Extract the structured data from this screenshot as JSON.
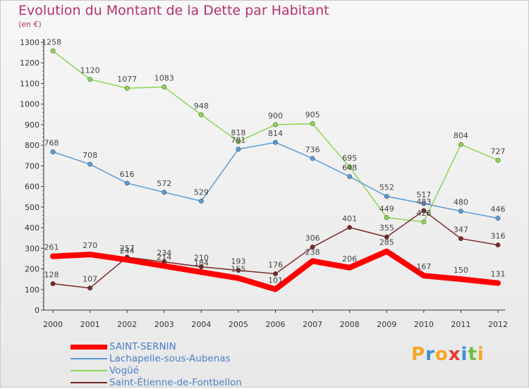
{
  "title": "Evolution du Montant de la Dette par Habitant",
  "subtitle": "(en €)",
  "logo": {
    "text": "Proxiti",
    "letters": [
      "P",
      "r",
      "o",
      "x",
      "i",
      "t",
      "i"
    ],
    "colors": [
      "#f5a623",
      "#3b8fd6",
      "#f5a623",
      "#e53935",
      "#3b8fd6",
      "#6abf40",
      "#f5a623"
    ]
  },
  "chart_data": {
    "type": "line",
    "title": "Evolution du Montant de la Dette par Habitant",
    "subtitle": "(en €)",
    "xlabel": "",
    "ylabel": "",
    "x": [
      "2000",
      "2001",
      "2002",
      "2003",
      "2004",
      "2005",
      "2006",
      "2007",
      "2008",
      "2009",
      "2010",
      "2011",
      "2012"
    ],
    "ylim": [
      0,
      1300
    ],
    "yticks": [
      0,
      100,
      200,
      300,
      400,
      500,
      600,
      700,
      800,
      900,
      1000,
      1100,
      1200,
      1300
    ],
    "grid": false,
    "legend": "bottom-left",
    "series": [
      {
        "name": "SAINT-SERNIN",
        "color": "#ff0000",
        "width": 8,
        "values": [
          261,
          270,
          244,
          214,
          184,
          155,
          101,
          238,
          206,
          285,
          167,
          150,
          131
        ],
        "labels": [
          "261",
          "270",
          "244",
          "214",
          "184",
          "155",
          "101",
          "238",
          "206",
          "285",
          "167",
          "150",
          "131"
        ]
      },
      {
        "name": "Lachapelle-sous-Aubenas",
        "color": "#5b9bd5",
        "width": 1.5,
        "values": [
          768,
          708,
          616,
          572,
          529,
          781,
          814,
          736,
          648,
          552,
          517,
          480,
          446
        ],
        "labels": [
          "768",
          "708",
          "616",
          "572",
          "529",
          "781",
          "814",
          "736",
          "648",
          "552",
          "517",
          "480",
          "446"
        ]
      },
      {
        "name": "Vogüé",
        "color": "#8ed553",
        "width": 1.5,
        "values": [
          1258,
          1120,
          1077,
          1083,
          948,
          818,
          900,
          905,
          695,
          449,
          428,
          804,
          727
        ],
        "labels": [
          "1258",
          "1120",
          "1077",
          "1083",
          "948",
          "818",
          "900",
          "905",
          "695",
          "449",
          "428",
          "804",
          "727"
        ]
      },
      {
        "name": "Saint-Étienne-de-Fontbellon",
        "color": "#7a2a2a",
        "width": 1.5,
        "values": [
          128,
          107,
          257,
          234,
          210,
          193,
          176,
          306,
          401,
          355,
          483,
          347,
          316
        ],
        "labels": [
          "128",
          "107",
          "257",
          "234",
          "210",
          "193",
          "176",
          "306",
          "401",
          "355",
          "483",
          "347",
          "316"
        ]
      }
    ]
  }
}
